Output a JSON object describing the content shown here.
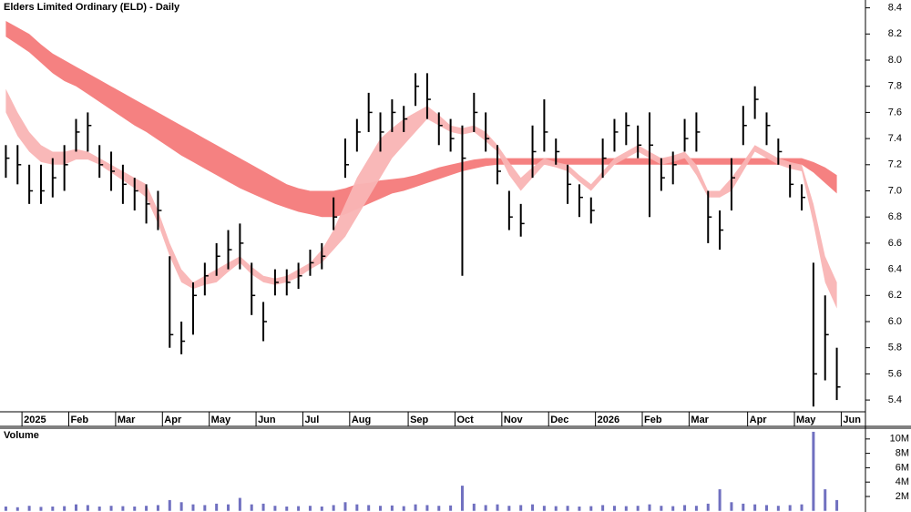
{
  "chart_data": {
    "type": "ohlc",
    "title": "Elders Limited Ordinary (ELD) - Daily",
    "categories": [
      null,
      null,
      "2025",
      null,
      null,
      null,
      "Feb",
      null,
      null,
      null,
      "Mar",
      null,
      null,
      null,
      "Apr",
      null,
      null,
      null,
      "May",
      null,
      null,
      null,
      "Jun",
      null,
      null,
      null,
      "Jul",
      null,
      null,
      null,
      "Aug",
      null,
      null,
      null,
      null,
      "Sep",
      null,
      null,
      null,
      "Oct",
      null,
      null,
      null,
      "Nov",
      null,
      null,
      null,
      "Dec",
      null,
      null,
      null,
      "2026",
      null,
      null,
      null,
      "Feb",
      null,
      null,
      null,
      "Mar",
      null,
      null,
      null,
      null,
      "Apr",
      null,
      null,
      null,
      "May",
      null,
      null,
      null,
      "Jun"
    ],
    "color": "#000000",
    "high": [
      7.35,
      7.35,
      7.2,
      7.2,
      7.25,
      7.35,
      7.55,
      7.6,
      7.35,
      7.3,
      7.2,
      7.1,
      7.05,
      7.0,
      6.5,
      6.0,
      6.3,
      6.45,
      6.6,
      6.7,
      6.75,
      6.45,
      6.15,
      6.4,
      6.4,
      6.45,
      6.55,
      6.6,
      6.95,
      7.4,
      7.55,
      7.75,
      7.6,
      7.7,
      7.65,
      7.9,
      7.9,
      7.6,
      7.55,
      7.5,
      7.75,
      7.6,
      7.35,
      7.0,
      6.9,
      7.5,
      7.7,
      7.4,
      7.2,
      7.05,
      6.95,
      7.4,
      7.55,
      7.6,
      7.5,
      7.6,
      7.25,
      7.3,
      7.55,
      7.6,
      7.0,
      6.85,
      7.25,
      7.65,
      7.8,
      7.6,
      7.4,
      7.2,
      7.05,
      6.45,
      6.2,
      5.8,
      null
    ],
    "low": [
      7.1,
      7.05,
      6.9,
      6.9,
      6.95,
      7.0,
      7.3,
      7.3,
      7.1,
      7.0,
      6.9,
      6.85,
      6.75,
      6.7,
      5.8,
      5.75,
      5.9,
      6.2,
      6.35,
      6.4,
      6.4,
      6.05,
      5.85,
      6.2,
      6.2,
      6.25,
      6.35,
      6.4,
      6.7,
      7.1,
      7.3,
      7.45,
      7.3,
      7.45,
      7.45,
      7.65,
      7.55,
      7.35,
      7.3,
      6.35,
      7.45,
      7.3,
      7.05,
      6.7,
      6.65,
      7.1,
      7.3,
      7.2,
      6.9,
      6.8,
      6.75,
      7.1,
      7.3,
      7.35,
      7.25,
      6.8,
      7.0,
      7.05,
      7.3,
      7.3,
      6.6,
      6.55,
      6.85,
      7.35,
      7.55,
      7.35,
      7.2,
      6.95,
      6.85,
      5.35,
      5.55,
      5.4,
      null
    ],
    "close": [
      7.25,
      7.2,
      7.0,
      7.0,
      7.1,
      7.2,
      7.45,
      7.5,
      7.2,
      7.15,
      7.05,
      7.0,
      6.9,
      6.85,
      5.9,
      5.85,
      6.2,
      6.35,
      6.5,
      6.55,
      6.6,
      6.2,
      6.0,
      6.3,
      6.3,
      6.35,
      6.45,
      6.5,
      6.8,
      7.2,
      7.45,
      7.6,
      7.45,
      7.6,
      7.55,
      7.8,
      7.7,
      7.5,
      7.4,
      7.25,
      7.6,
      7.4,
      7.15,
      6.8,
      6.75,
      7.3,
      7.45,
      7.3,
      7.05,
      6.95,
      6.85,
      7.25,
      7.45,
      7.5,
      7.35,
      7.35,
      7.1,
      7.2,
      7.4,
      7.45,
      6.8,
      6.7,
      7.1,
      7.5,
      7.7,
      7.5,
      7.3,
      7.05,
      6.95,
      5.6,
      5.9,
      5.5,
      null
    ],
    "bands": [
      {
        "color": "#f47a7a",
        "upper": [
          8.3,
          8.25,
          8.2,
          8.12,
          8.05,
          8.0,
          7.95,
          7.9,
          7.85,
          7.8,
          7.75,
          7.7,
          7.65,
          7.6,
          7.55,
          7.5,
          7.45,
          7.4,
          7.35,
          7.3,
          7.25,
          7.2,
          7.15,
          7.1,
          7.05,
          7.02,
          7.0,
          7.0,
          7.0,
          7.02,
          7.05,
          7.06,
          7.08,
          7.09,
          7.1,
          7.12,
          7.15,
          7.18,
          7.2,
          7.22,
          7.24,
          7.25,
          7.25,
          7.25,
          7.25,
          7.25,
          7.25,
          7.25,
          7.25,
          7.25,
          7.25,
          7.25,
          7.25,
          7.25,
          7.25,
          7.25,
          7.25,
          7.25,
          7.25,
          7.25,
          7.25,
          7.25,
          7.25,
          7.25,
          7.25,
          7.25,
          7.25,
          7.25,
          7.25,
          7.22,
          7.18,
          7.12,
          null
        ],
        "lower": [
          8.18,
          8.12,
          8.06,
          7.98,
          7.9,
          7.84,
          7.8,
          7.74,
          7.68,
          7.62,
          7.56,
          7.5,
          7.45,
          7.39,
          7.33,
          7.27,
          7.22,
          7.17,
          7.12,
          7.07,
          7.02,
          6.98,
          6.94,
          6.9,
          6.87,
          6.84,
          6.82,
          6.8,
          6.8,
          6.82,
          6.86,
          6.9,
          6.94,
          6.98,
          7.0,
          7.03,
          7.06,
          7.09,
          7.12,
          7.15,
          7.17,
          7.19,
          7.2,
          7.2,
          7.2,
          7.2,
          7.2,
          7.2,
          7.2,
          7.2,
          7.2,
          7.2,
          7.2,
          7.2,
          7.2,
          7.2,
          7.2,
          7.2,
          7.2,
          7.2,
          7.2,
          7.2,
          7.2,
          7.2,
          7.2,
          7.2,
          7.2,
          7.2,
          7.2,
          7.14,
          7.06,
          6.98,
          null
        ]
      },
      {
        "color": "#f9b4b4",
        "upper": [
          7.78,
          7.6,
          7.45,
          7.35,
          7.3,
          7.3,
          7.32,
          7.3,
          7.25,
          7.2,
          7.15,
          7.1,
          7.05,
          6.85,
          6.6,
          6.4,
          6.3,
          6.35,
          6.4,
          6.45,
          6.5,
          6.42,
          6.35,
          6.33,
          6.35,
          6.4,
          6.45,
          6.55,
          6.7,
          6.9,
          7.1,
          7.25,
          7.4,
          7.48,
          7.55,
          7.6,
          7.65,
          7.58,
          7.5,
          7.48,
          7.5,
          7.45,
          7.35,
          7.22,
          7.1,
          7.18,
          7.25,
          7.22,
          7.2,
          7.12,
          7.05,
          7.15,
          7.25,
          7.3,
          7.35,
          7.3,
          7.25,
          7.27,
          7.3,
          7.2,
          7.0,
          7.0,
          7.1,
          7.22,
          7.35,
          7.3,
          7.25,
          7.22,
          7.2,
          6.9,
          6.5,
          6.3,
          null
        ],
        "lower": [
          7.6,
          7.42,
          7.3,
          7.22,
          7.2,
          7.2,
          7.24,
          7.24,
          7.2,
          7.14,
          7.08,
          7.02,
          6.95,
          6.75,
          6.5,
          6.3,
          6.25,
          6.28,
          6.3,
          6.38,
          6.45,
          6.36,
          6.3,
          6.28,
          6.3,
          6.34,
          6.4,
          6.45,
          6.55,
          6.65,
          6.8,
          6.95,
          7.1,
          7.25,
          7.35,
          7.45,
          7.55,
          7.5,
          7.45,
          7.43,
          7.45,
          7.38,
          7.3,
          7.12,
          7.0,
          7.1,
          7.2,
          7.18,
          7.15,
          7.07,
          7.0,
          7.1,
          7.2,
          7.25,
          7.3,
          7.25,
          7.2,
          7.22,
          7.25,
          7.12,
          6.95,
          6.95,
          7.0,
          7.15,
          7.3,
          7.25,
          7.2,
          7.17,
          7.15,
          6.75,
          6.3,
          6.1,
          null
        ]
      }
    ],
    "ylim": [
      5.31,
      8.46
    ],
    "yticks": [
      5.4,
      5.6,
      5.8,
      {
        "value": 6,
        "label": "6.0"
      },
      6.2,
      6.4,
      6.6,
      6.8,
      {
        "value": 7,
        "label": "7.0"
      },
      7.2,
      7.4,
      7.6,
      7.8,
      {
        "value": 8,
        "label": "8.0"
      },
      8.2,
      8.4
    ],
    "volume": {
      "label": "Volume",
      "color": "#7070c0",
      "values": [
        600000,
        500000,
        700000,
        550000,
        600000,
        650000,
        900000,
        800000,
        600000,
        700000,
        650000,
        600000,
        700000,
        800000,
        1500000,
        1200000,
        900000,
        800000,
        1000000,
        900000,
        1800000,
        900000,
        1000000,
        700000,
        600000,
        650000,
        700000,
        600000,
        800000,
        1200000,
        900000,
        800000,
        700000,
        750000,
        650000,
        900000,
        800000,
        700000,
        750000,
        3500000,
        1000000,
        800000,
        900000,
        700000,
        800000,
        900000,
        700000,
        650000,
        700000,
        600000,
        650000,
        800000,
        700000,
        650000,
        700000,
        900000,
        700000,
        650000,
        800000,
        700000,
        1000000,
        3000000,
        1200000,
        1000000,
        900000,
        800000,
        700000,
        800000,
        900000,
        11000000,
        3000000,
        1500000,
        null
      ],
      "ylim": [
        -160000,
        11500000
      ],
      "yticks": [
        {
          "value": 2000000,
          "label": "2M"
        },
        {
          "value": 4000000,
          "label": "4M"
        },
        {
          "value": 6000000,
          "label": "6M"
        },
        {
          "value": 8000000,
          "label": "8M"
        },
        {
          "value": 10000000,
          "label": "10M"
        }
      ]
    }
  }
}
